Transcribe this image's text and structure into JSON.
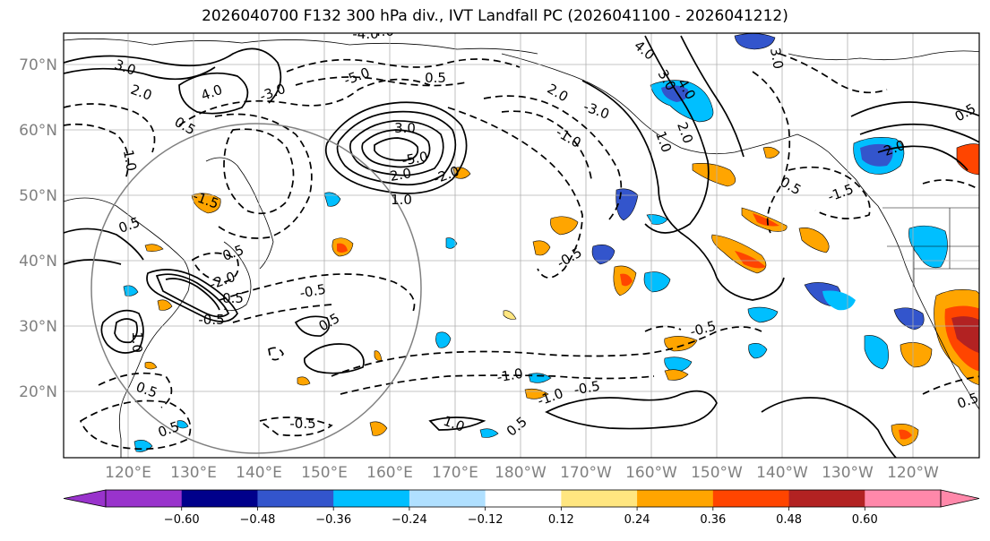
{
  "title": "2026040700 F132 300 hPa div., IVT Landfall PC (2026041100 - 2026041212)",
  "lat_labels": [
    "70°N",
    "60°N",
    "50°N",
    "40°N",
    "30°N",
    "20°N"
  ],
  "lon_labels": [
    "120°E",
    "130°E",
    "140°E",
    "150°E",
    "160°E",
    "170°E",
    "180°W",
    "170°W",
    "160°W",
    "150°W",
    "140°W",
    "130°W",
    "120°W"
  ],
  "colorbar": {
    "ticks": [
      "−0.60",
      "−0.48",
      "−0.36",
      "−0.24",
      "−0.12",
      "0.12",
      "0.24",
      "0.36",
      "0.48",
      "0.60"
    ],
    "colors": [
      "#9933cc",
      "#00008b",
      "#3355cc",
      "#00bfff",
      "#b0e0ff",
      "#ffffff",
      "#ffe680",
      "#ffa500",
      "#ff4500",
      "#b22222",
      "#ff88aa"
    ]
  },
  "contour_labels": [
    "4.0",
    "3.0",
    "2.0",
    "1.0",
    "0.5",
    "-0.5",
    "-1.0",
    "-1.5",
    "-2.0",
    "-3.0",
    "-4.0",
    "-5.0"
  ]
}
